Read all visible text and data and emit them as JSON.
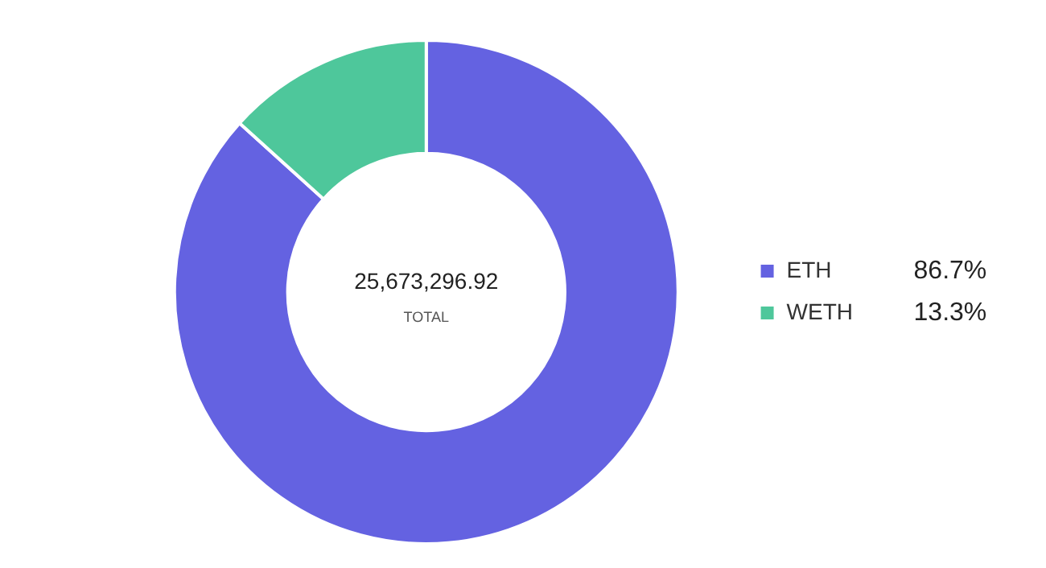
{
  "chart_data": {
    "type": "donut",
    "categories": [
      "ETH",
      "WETH"
    ],
    "values": [
      86.7,
      13.3
    ],
    "colors": [
      "#6462e1",
      "#4ec79b"
    ],
    "value_labels": [
      "86.7%",
      "13.3%"
    ],
    "annotations": [
      "25,673,296.92",
      "TOTAL"
    ],
    "legend": "right"
  }
}
